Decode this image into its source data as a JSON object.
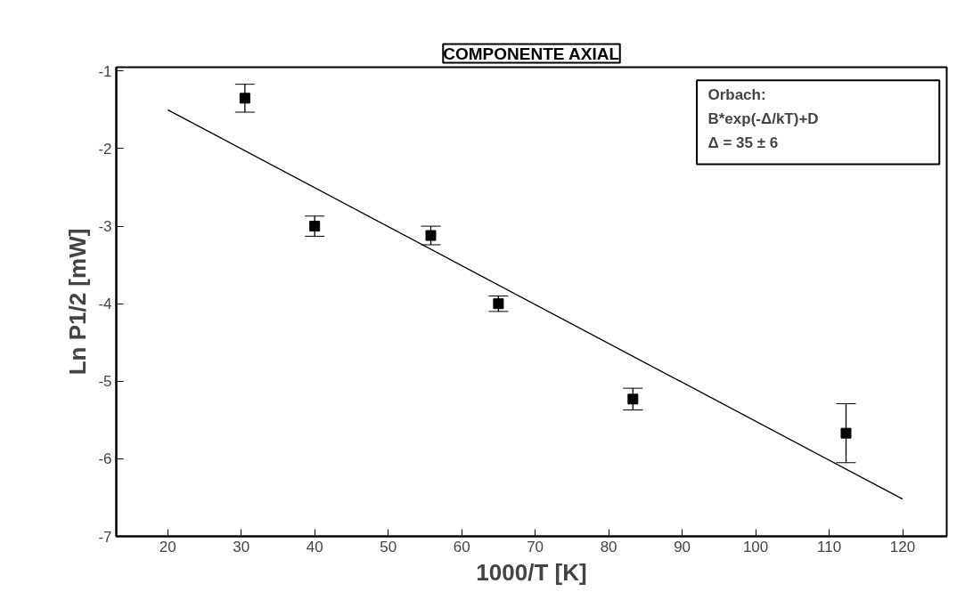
{
  "chart_data": {
    "type": "scatter",
    "title": "COMPONENTE AXIAL",
    "xlabel": "1000/T [K]",
    "ylabel": "Ln P1/2 [mW]",
    "annotations": [
      "Orbach:",
      "B*exp(-Δ/kT)+D",
      "Δ = 35 ± 6"
    ],
    "xlim": [
      13,
      126
    ],
    "ylim": [
      -7,
      -0.95
    ],
    "xticks": [
      20,
      30,
      40,
      50,
      60,
      70,
      80,
      90,
      100,
      110,
      120
    ],
    "yticks": [
      -7,
      -6,
      -5,
      -4,
      -3,
      -2,
      -1
    ],
    "grid": false,
    "marker": "square",
    "series": [
      {
        "type": "scatter",
        "color": "#000000",
        "x": [
          30.5,
          40,
          55.8,
          65,
          83.3,
          112.3
        ],
        "values": [
          -1.35,
          -3.0,
          -3.12,
          -4.0,
          -5.23,
          -5.67
        ],
        "errors": [
          0.18,
          0.13,
          0.12,
          0.1,
          0.14,
          0.38
        ]
      },
      {
        "type": "line",
        "color": "#000000",
        "line_style": "solid",
        "marker": "none",
        "x": [
          20,
          120
        ],
        "values": [
          -1.5,
          -6.52
        ]
      }
    ]
  }
}
